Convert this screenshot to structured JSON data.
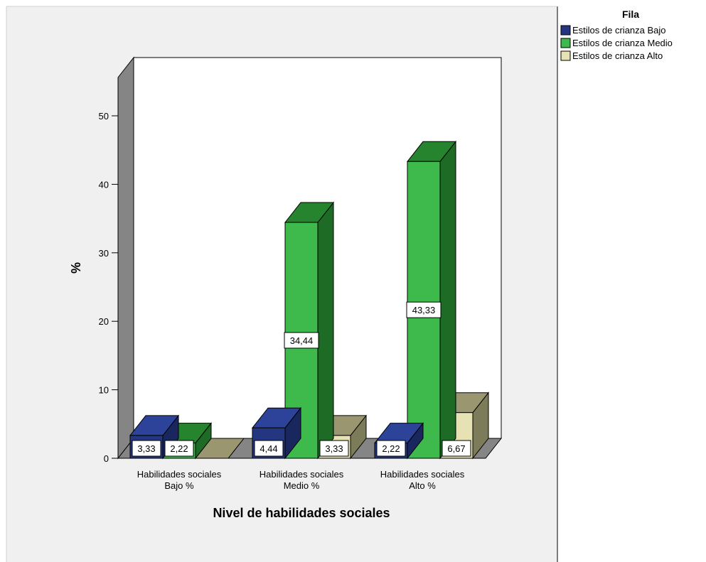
{
  "chart_data": {
    "type": "bar",
    "title": "",
    "xlabel": "Nivel de habilidades sociales",
    "ylabel": "%",
    "ylim": [
      0,
      55
    ],
    "yticks": [
      0,
      10,
      20,
      30,
      40,
      50
    ],
    "categories": [
      [
        "Habilidades sociales",
        "Bajo %"
      ],
      [
        "Habilidades sociales",
        "Medio %"
      ],
      [
        "Habilidades sociales",
        "Alto %"
      ]
    ],
    "legend": {
      "title": "Fila",
      "position": "top-right"
    },
    "series": [
      {
        "name": "Estilos de crianza Bajo",
        "values": [
          3.33,
          4.44,
          2.22
        ],
        "labels": [
          "3,33",
          "4,44",
          "2,22"
        ],
        "color": "#23367f",
        "side": "#1a275e",
        "top": "#2c4399"
      },
      {
        "name": "Estilos de crianza Medio",
        "values": [
          2.22,
          34.44,
          43.33
        ],
        "labels": [
          "2,22",
          "34,44",
          "43,33"
        ],
        "color": "#3dba4b",
        "side": "#1e6b26",
        "top": "#26842f"
      },
      {
        "name": "Estilos de crianza Alto",
        "values": [
          0,
          3.33,
          6.67
        ],
        "labels": [
          "",
          "3,33",
          "6,67"
        ],
        "color": "#e7e2b4",
        "side": "#7d7c5a",
        "top": "#9a9670"
      }
    ],
    "grid": false
  }
}
